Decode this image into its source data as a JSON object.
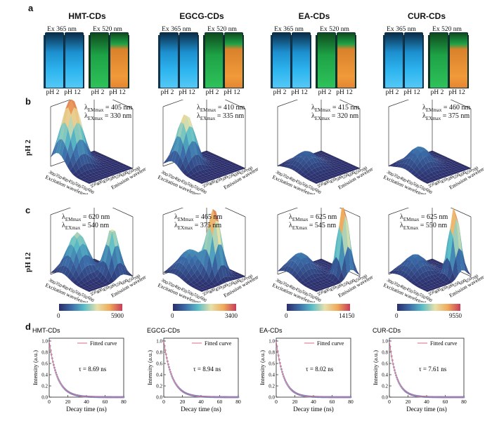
{
  "panels": {
    "a": "a",
    "b": "b",
    "c": "c",
    "d": "d"
  },
  "row_labels": {
    "ph2": "pH 2",
    "ph12": "pH 12"
  },
  "colors": {
    "uv_blue": "#27a6e6",
    "green": "#1fb04a",
    "orange": "#e8832a",
    "surface_low": "#2b2e6b",
    "surface_high": "#f2c06d",
    "fit_line": "#e26a78",
    "data_points": "#6f86c8"
  },
  "groups": [
    {
      "title": "HMT-CDs",
      "ex365": "Ex 365 nm",
      "ex520": "Ex 520 nm",
      "ph_a": "pH 2",
      "ph_b": "pH 12",
      "pH2": {
        "em": "= 405 nm",
        "ex": "= 330 nm",
        "em_sub": "EMmax",
        "ex_sub": "EXmax"
      },
      "pH12": {
        "em": "= 620 nm",
        "ex": "= 540 nm",
        "em_sub": "EMmax",
        "ex_sub": "EXmax"
      },
      "cbar_min": "0",
      "cbar_max": "5900",
      "tau": "τ = 8.69 ns"
    },
    {
      "title": "EGCG-CDs",
      "ex365": "Ex 365 nm",
      "ex520": "Ex 520 nm",
      "ph_a": "pH 2",
      "ph_b": "pH 12",
      "pH2": {
        "em": "= 410 nm",
        "ex": "= 335 nm",
        "em_sub": "EMmax",
        "ex_sub": "EXmax"
      },
      "pH12": {
        "em": "= 465 nm",
        "ex": "= 375 nm",
        "em_sub": "EMmax",
        "ex_sub": "EXmax"
      },
      "cbar_min": "0",
      "cbar_max": "3400",
      "tau": "τ = 8.94 ns"
    },
    {
      "title": "EA-CDs",
      "ex365": "Ex 365 nm",
      "ex520": "Ex 520 nm",
      "ph_a": "pH 2",
      "ph_b": "pH 12",
      "pH2": {
        "em": "= 415 nm",
        "ex": "= 320 nm",
        "em_sub": "EMmax",
        "ex_sub": "EXmax"
      },
      "pH12": {
        "em": "= 625 nm",
        "ex": "= 545 nm",
        "em_sub": "EMmax",
        "ex_sub": "EXmax"
      },
      "cbar_min": "0",
      "cbar_max": "14150",
      "tau": "τ = 8.02 ns"
    },
    {
      "title": "CUR-CDs",
      "ex365": "Ex 365 nm",
      "ex520": "Ex 520 nm",
      "ph_a": "pH 2",
      "ph_b": "pH 12",
      "pH2": {
        "em": "= 460 nm",
        "ex": "= 375 nm",
        "em_sub": "EMmax",
        "ex_sub": "EXmax"
      },
      "pH12": {
        "em": "= 625 nm",
        "ex": "= 550 nm",
        "em_sub": "EMmax",
        "ex_sub": "EXmax"
      },
      "cbar_min": "0",
      "cbar_max": "9550",
      "tau": "τ = 7.61 ns"
    }
  ],
  "axes3d": {
    "x_label": "Excitation wavelength",
    "y_label": "Emission wavelength",
    "lambda": "λ"
  },
  "chart_data": [
    {
      "type": "line",
      "title": "HMT-CDs",
      "xlabel": "Decay time (ns)",
      "ylabel": "Intensity (a.u.)",
      "xlim": [
        0,
        80
      ],
      "ylim": [
        0,
        1.05
      ],
      "xticks": [
        "0",
        "20",
        "40",
        "60",
        "80"
      ],
      "yticks": [
        "0.0",
        "0.2",
        "0.4",
        "0.6",
        "0.8",
        "1.0"
      ],
      "legend": "Fitted curve",
      "legend_position": "top-right",
      "tau_ns": 8.69
    },
    {
      "type": "line",
      "title": "EGCG-CDs",
      "xlabel": "Decay time (ns)",
      "ylabel": "Intensity (a.u.)",
      "xlim": [
        0,
        80
      ],
      "ylim": [
        0,
        1.05
      ],
      "xticks": [
        "0",
        "20",
        "40",
        "60",
        "80"
      ],
      "yticks": [
        "0.0",
        "0.2",
        "0.4",
        "0.6",
        "0.8",
        "1.0"
      ],
      "legend": "Fitted curve",
      "legend_position": "top-right",
      "tau_ns": 8.94
    },
    {
      "type": "line",
      "title": "EA-CDs",
      "xlabel": "Decay time (ns)",
      "ylabel": "Intensity (a.u.)",
      "xlim": [
        0,
        80
      ],
      "ylim": [
        0,
        1.05
      ],
      "xticks": [
        "0",
        "20",
        "40",
        "60",
        "80"
      ],
      "yticks": [
        "0.0",
        "0.2",
        "0.4",
        "0.6",
        "0.8",
        "1.0"
      ],
      "legend": "Fitted curve",
      "legend_position": "top-right",
      "tau_ns": 8.02
    },
    {
      "type": "line",
      "title": "CUR-CDs",
      "xlabel": "Decay time (ns)",
      "ylabel": "Intensity (a.u.)",
      "xlim": [
        0,
        80
      ],
      "ylim": [
        0,
        1.05
      ],
      "xticks": [
        "0",
        "20",
        "40",
        "60",
        "80"
      ],
      "yticks": [
        "0.0",
        "0.2",
        "0.4",
        "0.6",
        "0.8",
        "1.0"
      ],
      "legend": "Fitted curve",
      "legend_position": "top-right",
      "tau_ns": 7.61
    }
  ]
}
